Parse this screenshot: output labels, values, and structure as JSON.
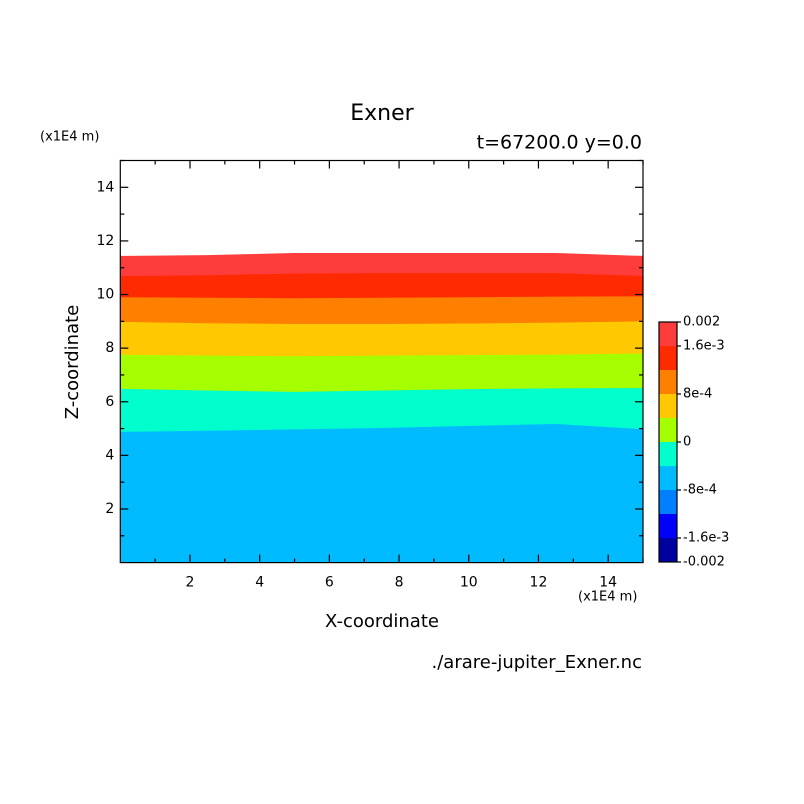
{
  "chart_data": {
    "type": "contourf",
    "title": "Exner",
    "subtitle": "t=67200.0 y=0.0",
    "xlabel": "X-coordinate",
    "ylabel": "Z-coordinate",
    "x_unit": "(x1E4 m)",
    "y_unit": "(x1E4 m)",
    "footer": "./arare-jupiter_Exner.nc",
    "xlim": [
      0,
      15
    ],
    "ylim": [
      0,
      15
    ],
    "xticks": [
      2,
      4,
      6,
      8,
      10,
      12,
      14
    ],
    "yticks": [
      2,
      4,
      6,
      8,
      10,
      12,
      14
    ],
    "xminorticks": [
      1,
      3,
      5,
      7,
      9,
      11,
      13,
      15
    ],
    "yminorticks": [
      1,
      3,
      5,
      7,
      9,
      11,
      13,
      15
    ],
    "x": [
      0,
      2.5,
      5,
      7.5,
      10,
      12.5,
      15
    ],
    "contours": [
      {
        "level": 0.002,
        "z": [
          11.44,
          11.47,
          11.55,
          11.55,
          11.55,
          11.55,
          11.44
        ]
      },
      {
        "level": 0.0016,
        "z": [
          10.69,
          10.72,
          10.78,
          10.8,
          10.8,
          10.8,
          10.69
        ]
      },
      {
        "level": 0.0012,
        "z": [
          9.9,
          9.88,
          9.86,
          9.88,
          9.9,
          9.92,
          9.93
        ]
      },
      {
        "level": 0.0008,
        "z": [
          8.98,
          8.93,
          8.9,
          8.9,
          8.92,
          8.95,
          9.0
        ]
      },
      {
        "level": 0.0004,
        "z": [
          7.75,
          7.72,
          7.7,
          7.72,
          7.74,
          7.76,
          7.8
        ]
      },
      {
        "level": 0,
        "z": [
          6.48,
          6.42,
          6.37,
          6.42,
          6.47,
          6.5,
          6.51
        ]
      },
      {
        "level": -0.0004,
        "z": [
          4.88,
          4.92,
          4.97,
          5.02,
          5.1,
          5.17,
          4.98
        ]
      }
    ],
    "colorbar": {
      "levels": [
        -0.002,
        -0.0016,
        -0.0012,
        -0.0008,
        -0.0004,
        0,
        0.0004,
        0.0008,
        0.0012,
        0.0016,
        0.002
      ],
      "colors": [
        "#0000a0",
        "#0000ff",
        "#0080ff",
        "#00bbff",
        "#00ffcc",
        "#a6ff00",
        "#ffc800",
        "#ff8000",
        "#ff2a00",
        "#ff3c3c"
      ],
      "ticks": [
        0.002,
        {
          "value": 0.0016,
          "label": "1.6e-3"
        },
        {
          "value": 0.0008,
          "label": "8e-4"
        },
        0,
        {
          "value": -0.0008,
          "label": "-8e-4"
        },
        {
          "value": -0.0016,
          "label": "-1.6e-3"
        },
        -0.002
      ]
    }
  }
}
